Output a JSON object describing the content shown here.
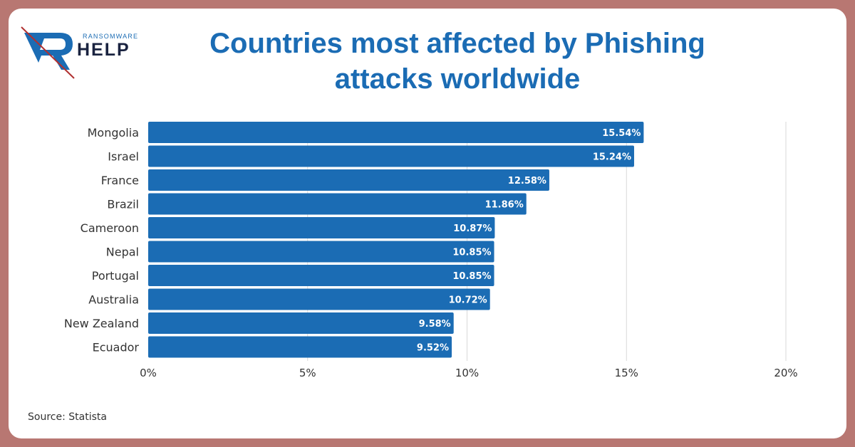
{
  "logo": {
    "small": "RANSOMWARE",
    "big": "HELP"
  },
  "source": "Source: Statista",
  "colors": {
    "bar": "#1b6cb4",
    "frame": "#b87772",
    "title": "#1b6cb4",
    "grid": "#d9d9d9"
  },
  "chart_data": {
    "type": "bar",
    "orientation": "horizontal",
    "title": "Countries most affected by Phishing attacks worldwide",
    "categories": [
      "Mongolia",
      "Israel",
      "France",
      "Brazil",
      "Cameroon",
      "Nepal",
      "Portugal",
      "Australia",
      "New Zealand",
      "Ecuador"
    ],
    "values": [
      15.54,
      15.24,
      12.58,
      11.86,
      10.87,
      10.85,
      10.85,
      10.72,
      9.58,
      9.52
    ],
    "value_labels": [
      "15.54%",
      "15.24%",
      "12.58%",
      "11.86%",
      "10.87%",
      "10.85%",
      "10.85%",
      "10.72%",
      "9.58%",
      "9.52%"
    ],
    "xlim": [
      0,
      20
    ],
    "xticks": [
      0,
      5,
      10,
      15,
      20
    ],
    "xtick_labels": [
      "0%",
      "5%",
      "10%",
      "15%",
      "20%"
    ],
    "grid": true,
    "legend": "none",
    "xlabel": "",
    "ylabel": ""
  }
}
